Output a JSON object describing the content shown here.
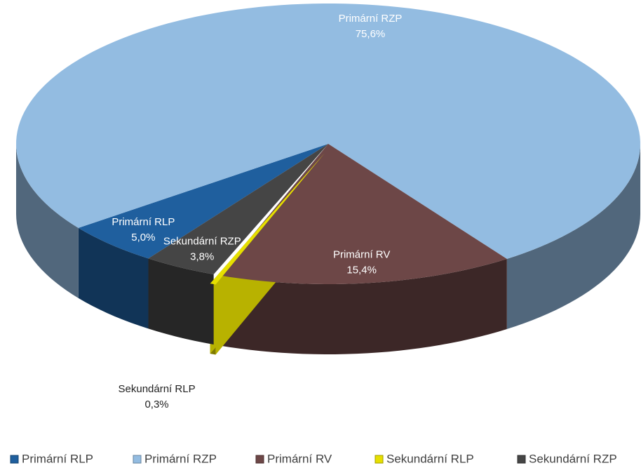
{
  "chart_data": {
    "type": "pie",
    "view": "3d",
    "categories": [
      "Primární RLP",
      "Primární RZP",
      "Primární RV",
      "Sekundární RLP",
      "Sekundární RZP"
    ],
    "values": [
      5.0,
      75.6,
      15.4,
      0.3,
      3.8
    ],
    "value_labels": [
      "5,0%",
      "75,6%",
      "15,4%",
      "0,3%",
      "3,8%"
    ],
    "colors": [
      "#1f5f9e",
      "#93bce1",
      "#6d4747",
      "#e6df00",
      "#454545"
    ],
    "legend": "bottom"
  }
}
